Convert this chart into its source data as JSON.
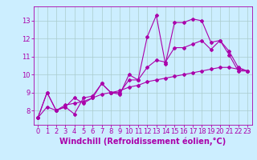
{
  "xlabel": "Windchill (Refroidissement éolien,°C)",
  "ylabel": "",
  "bg_color": "#cceeff",
  "line_color": "#aa00aa",
  "grid_color": "#aacccc",
  "xlim": [
    -0.5,
    23.5
  ],
  "ylim": [
    7.2,
    13.8
  ],
  "yticks": [
    8,
    9,
    10,
    11,
    12,
    13
  ],
  "xticks": [
    0,
    1,
    2,
    3,
    4,
    5,
    6,
    7,
    8,
    9,
    10,
    11,
    12,
    13,
    14,
    15,
    16,
    17,
    18,
    19,
    20,
    21,
    22,
    23
  ],
  "series1_x": [
    0,
    1,
    2,
    3,
    4,
    5,
    6,
    7,
    8,
    9,
    10,
    11,
    12,
    13,
    14,
    15,
    16,
    17,
    18,
    19,
    20,
    21,
    22,
    23
  ],
  "series1_y": [
    7.6,
    9.0,
    8.0,
    8.2,
    7.8,
    8.7,
    8.8,
    9.5,
    9.0,
    8.9,
    10.0,
    9.7,
    12.1,
    13.3,
    10.6,
    12.9,
    12.9,
    13.1,
    13.0,
    11.8,
    11.9,
    11.1,
    10.2,
    10.2
  ],
  "series2_x": [
    0,
    1,
    2,
    3,
    4,
    5,
    6,
    7,
    8,
    9,
    10,
    11,
    12,
    13,
    14,
    15,
    16,
    17,
    18,
    19,
    20,
    21,
    22,
    23
  ],
  "series2_y": [
    7.6,
    9.0,
    8.0,
    8.2,
    8.7,
    8.4,
    8.7,
    9.5,
    9.0,
    9.0,
    9.7,
    9.7,
    10.4,
    10.8,
    10.7,
    11.5,
    11.5,
    11.7,
    11.9,
    11.4,
    11.9,
    11.3,
    10.4,
    10.2
  ],
  "series3_x": [
    0,
    1,
    2,
    3,
    4,
    5,
    6,
    7,
    8,
    9,
    10,
    11,
    12,
    13,
    14,
    15,
    16,
    17,
    18,
    19,
    20,
    21,
    22,
    23
  ],
  "series3_y": [
    7.6,
    8.2,
    8.0,
    8.3,
    8.4,
    8.5,
    8.7,
    8.9,
    9.0,
    9.1,
    9.3,
    9.4,
    9.6,
    9.7,
    9.8,
    9.9,
    10.0,
    10.1,
    10.2,
    10.3,
    10.4,
    10.4,
    10.3,
    10.2
  ],
  "tick_fontsize": 6,
  "xlabel_fontsize": 7,
  "marker": "D",
  "markersize": 2.0,
  "linewidth": 0.8
}
